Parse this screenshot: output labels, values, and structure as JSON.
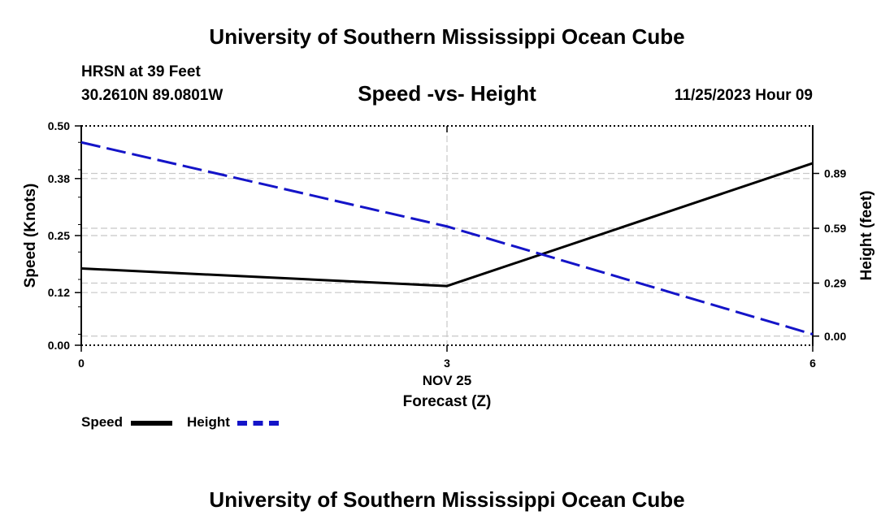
{
  "header": {
    "title": "University of Southern Mississippi Ocean Cube",
    "station": "HRSN at 39 Feet",
    "coords": "30.2610N  89.0801W",
    "datetime": "11/25/2023 Hour 09"
  },
  "footer": {
    "title": "University of Southern Mississippi Ocean Cube"
  },
  "legend": {
    "speed_label": "Speed",
    "height_label": "Height"
  },
  "chart_data": {
    "type": "line",
    "title": "Speed -vs- Height",
    "xlabel": "Forecast (Z)",
    "x_date_label": "NOV 25",
    "ylabel": "Speed (Knots)",
    "y2label": "Height (feet)",
    "x": [
      0,
      3,
      6
    ],
    "xticks": [
      "0",
      "3",
      "6"
    ],
    "xlim": [
      0,
      6
    ],
    "ylim": [
      0,
      0.5
    ],
    "yticks": [
      "0.00",
      "0.12",
      "0.25",
      "0.38",
      "0.50"
    ],
    "y2lim": [
      -0.05,
      1.15
    ],
    "y2ticks": [
      "0.00",
      "0.29",
      "0.59",
      "0.89"
    ],
    "grid": true,
    "series": [
      {
        "name": "Speed",
        "axis": "left",
        "values": [
          0.175,
          0.135,
          0.415
        ],
        "color": "#000000",
        "style": "solid"
      },
      {
        "name": "Height",
        "axis": "right",
        "values": [
          1.06,
          0.6,
          0.01
        ],
        "color": "#1414c8",
        "style": "dashed"
      }
    ]
  }
}
